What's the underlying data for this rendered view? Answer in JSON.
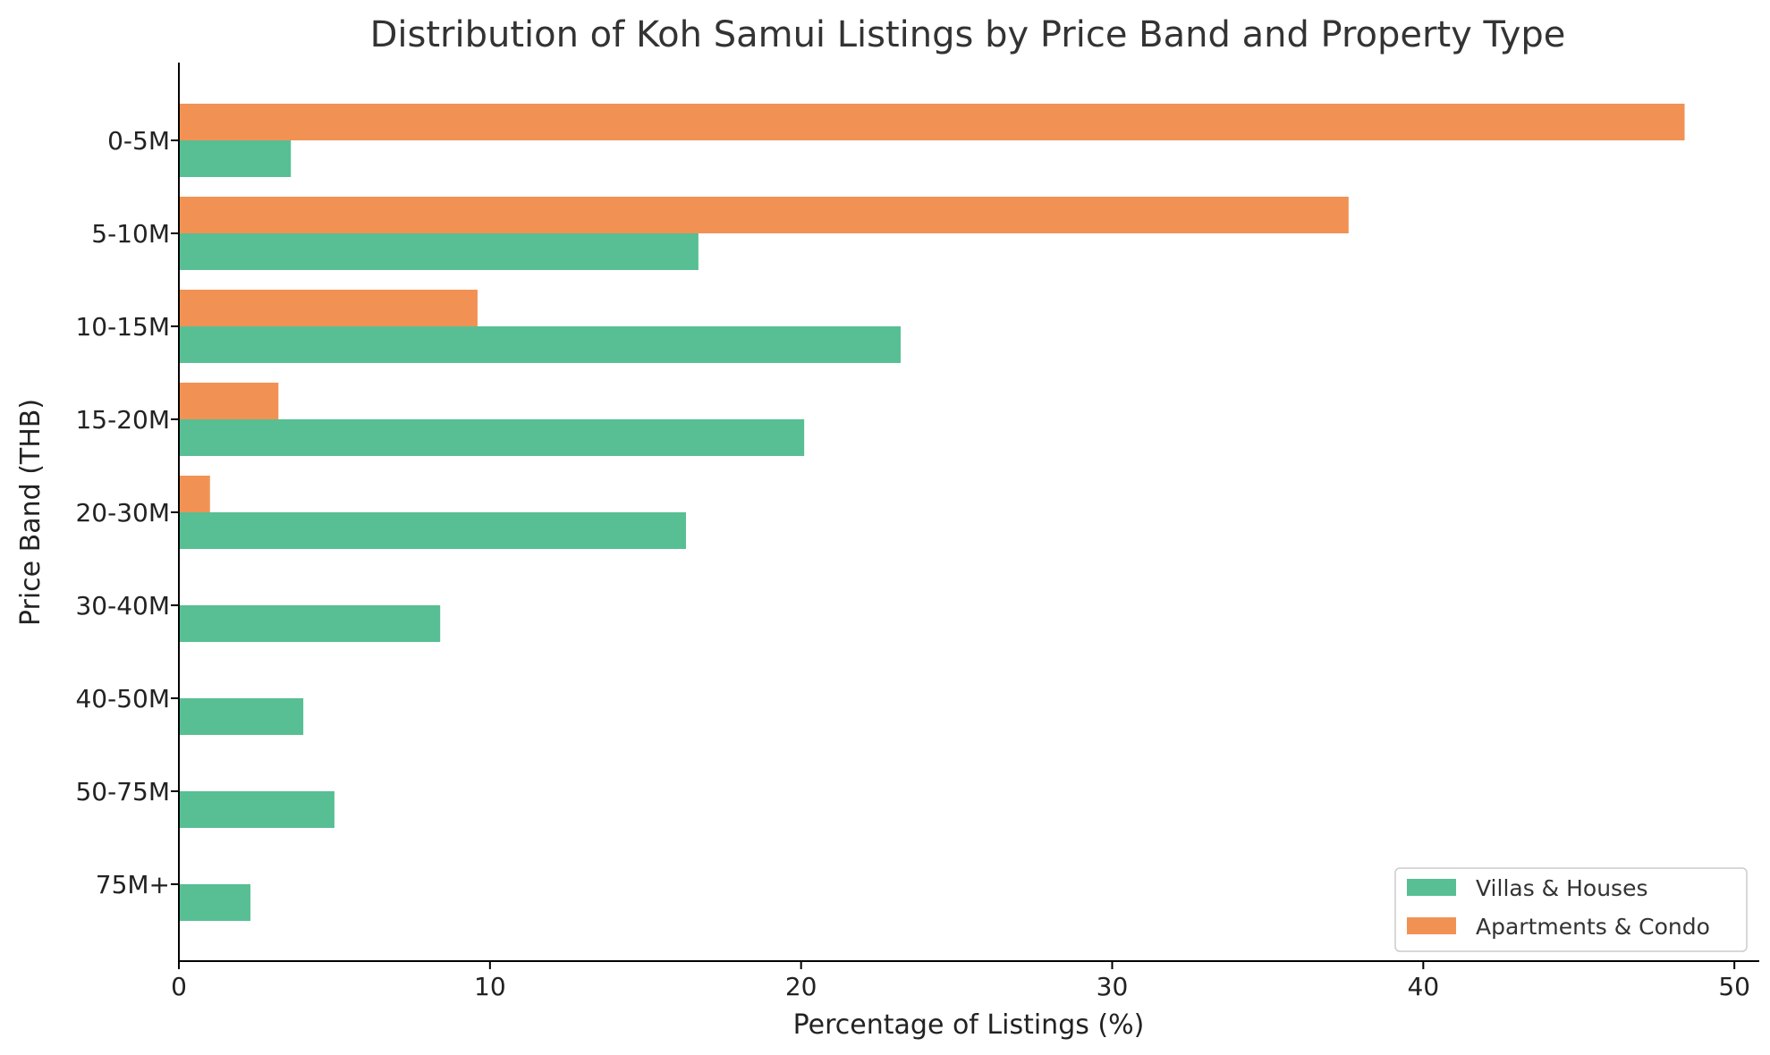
{
  "chart_data": {
    "type": "bar",
    "orientation": "horizontal",
    "title": "Distribution of Koh Samui Listings by Price Band and Property Type",
    "xlabel": "Percentage of Listings (%)",
    "ylabel": "Price Band (THB)",
    "categories": [
      "0-5M",
      "5-10M",
      "10-15M",
      "15-20M",
      "20-30M",
      "30-40M",
      "40-50M",
      "50-75M",
      "75M+"
    ],
    "xlim": [
      0,
      50.8
    ],
    "xticks": [
      0,
      10,
      20,
      30,
      40,
      50
    ],
    "grid": false,
    "legend_position": "bottom-right",
    "series": [
      {
        "name": "Villas & Houses",
        "color": "#57bf93",
        "values": [
          3.6,
          16.7,
          23.2,
          20.1,
          16.3,
          8.4,
          4.0,
          5.0,
          2.3
        ]
      },
      {
        "name": "Apartments & Condo",
        "color": "#f19254",
        "values": [
          48.4,
          37.6,
          9.6,
          3.2,
          1.0,
          0,
          0,
          0,
          0
        ]
      }
    ]
  }
}
